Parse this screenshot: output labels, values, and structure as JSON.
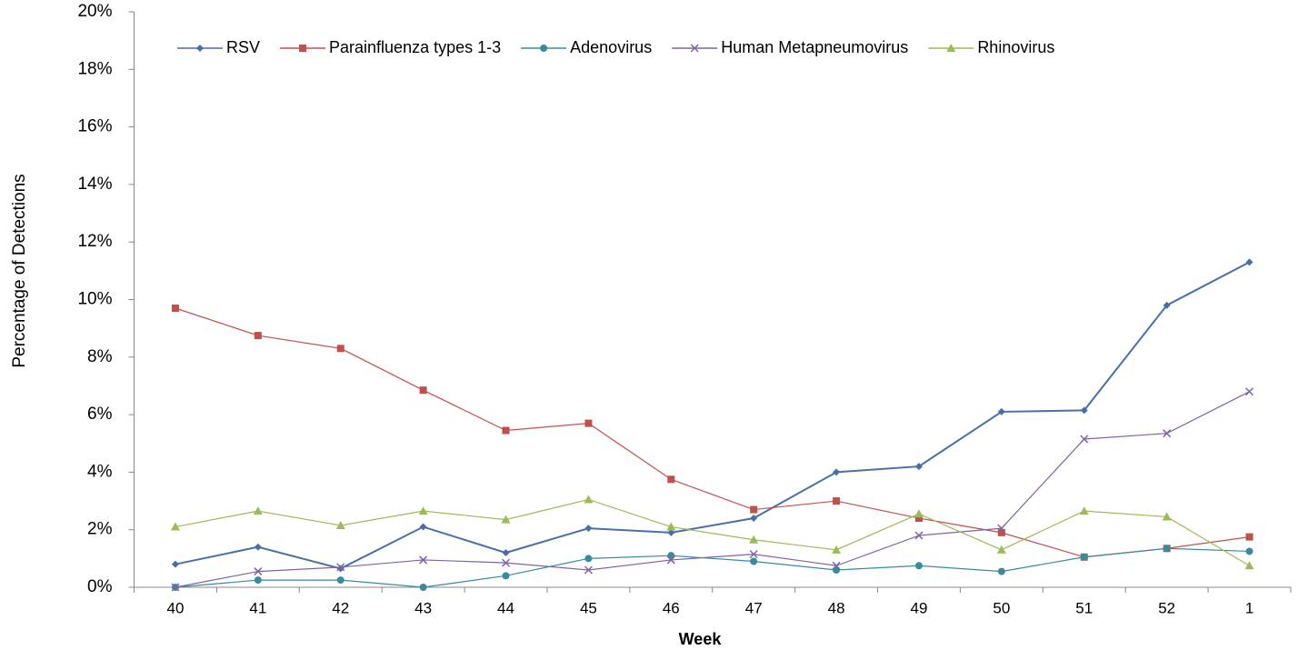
{
  "chart_data": {
    "type": "line",
    "x_label": "Week",
    "y_label": "Percentage of Detections",
    "categories": [
      "40",
      "41",
      "42",
      "43",
      "44",
      "45",
      "46",
      "47",
      "48",
      "49",
      "50",
      "51",
      "52",
      "1"
    ],
    "series": [
      {
        "name": "RSV",
        "color": "#4a6fa5",
        "marker": "diamond",
        "values": [
          0.8,
          1.4,
          0.65,
          2.1,
          1.2,
          2.05,
          1.9,
          2.4,
          4.0,
          4.2,
          6.1,
          6.15,
          9.8,
          11.3
        ]
      },
      {
        "name": "Parainfluenza types 1-3",
        "color": "#c0504d",
        "marker": "square",
        "values": [
          9.7,
          8.75,
          8.3,
          6.85,
          5.45,
          5.7,
          3.75,
          2.7,
          3.0,
          2.4,
          1.9,
          1.05,
          1.35,
          1.75
        ]
      },
      {
        "name": "Adenovirus",
        "color": "#3a8a9e",
        "marker": "circle",
        "values": [
          0,
          0.25,
          0.25,
          0,
          0.4,
          1.0,
          1.1,
          0.9,
          0.6,
          0.75,
          0.55,
          1.05,
          1.35,
          1.25
        ]
      },
      {
        "name": "Human Metapneumovirus",
        "color": "#8064a2",
        "marker": "x",
        "values": [
          0,
          0.55,
          0.7,
          0.95,
          0.85,
          0.6,
          0.95,
          1.15,
          0.75,
          1.8,
          2.05,
          5.15,
          5.35,
          6.8
        ]
      },
      {
        "name": "Rhinovirus",
        "color": "#9bbb59",
        "marker": "triangle",
        "values": [
          2.1,
          2.65,
          2.15,
          2.65,
          2.35,
          3.05,
          2.1,
          1.65,
          1.3,
          2.55,
          1.3,
          2.65,
          2.45,
          0.75
        ]
      }
    ],
    "ylim": [
      0,
      20
    ],
    "yticks": [
      {
        "value": 0,
        "label": "0%"
      },
      {
        "value": 2,
        "label": "2%"
      },
      {
        "value": 4,
        "label": "4%"
      },
      {
        "value": 6,
        "label": "6%"
      },
      {
        "value": 8,
        "label": "8%"
      },
      {
        "value": 10,
        "label": "10%"
      },
      {
        "value": 12,
        "label": "12%"
      },
      {
        "value": 14,
        "label": "14%"
      },
      {
        "value": 16,
        "label": "16%"
      },
      {
        "value": 18,
        "label": "18%"
      },
      {
        "value": 20,
        "label": "20%"
      }
    ],
    "legend": "top"
  }
}
